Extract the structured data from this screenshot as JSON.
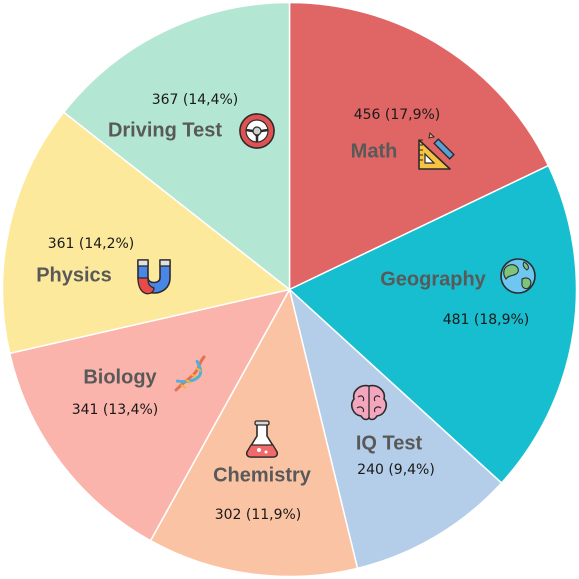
{
  "chart_data": {
    "type": "pie",
    "start_angle_deg": 0,
    "direction": "clockwise",
    "slices": [
      {
        "label": "Math",
        "value": 456,
        "value_text": "456 (17,9%)",
        "color": "#e06666",
        "icon": "ruler-triangle-icon"
      },
      {
        "label": "Geography",
        "value": 481,
        "value_text": "481 (18,9%)",
        "color": "#17becf",
        "icon": "globe-icon"
      },
      {
        "label": "IQ Test",
        "value": 240,
        "value_text": "240 (9,4%)",
        "color": "#b4cde8",
        "icon": "brain-icon"
      },
      {
        "label": "Chemistry",
        "value": 302,
        "value_text": "302 (11,9%)",
        "color": "#fac4a4",
        "icon": "flask-icon"
      },
      {
        "label": "Biology",
        "value": 341,
        "value_text": "341 (13,4%)",
        "color": "#fab4ac",
        "icon": "dna-icon"
      },
      {
        "label": "Physics",
        "value": 361,
        "value_text": "361 (14,2%)",
        "color": "#fde99c",
        "icon": "magnet-icon"
      },
      {
        "label": "Driving Test",
        "value": 367,
        "value_text": "367 (14,4%)",
        "color": "#b4e6d4",
        "icon": "steering-wheel-icon"
      }
    ]
  }
}
